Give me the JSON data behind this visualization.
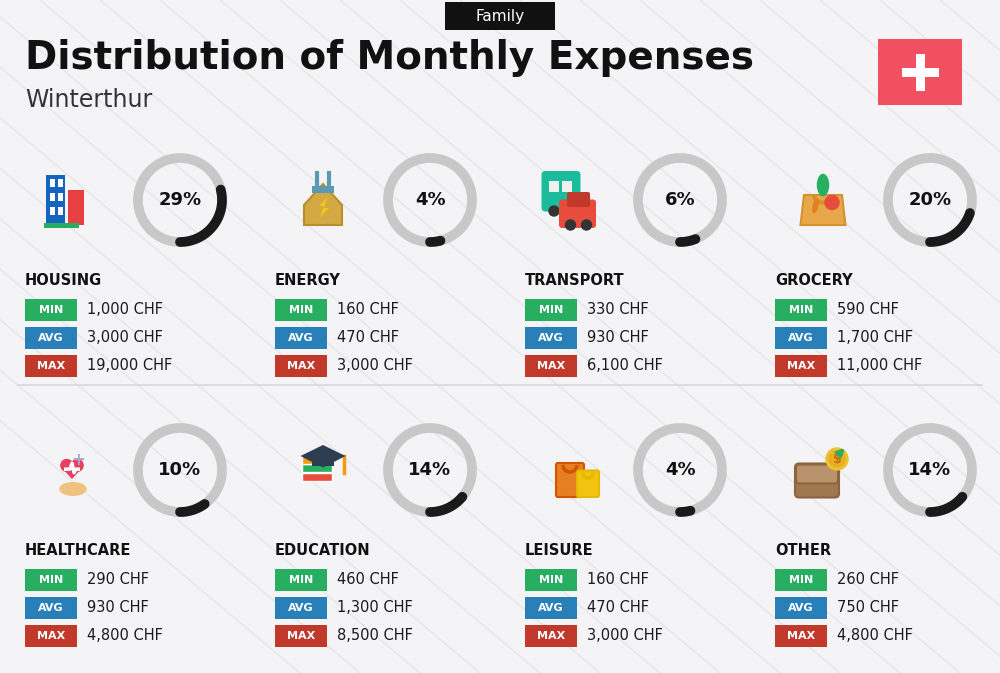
{
  "title": "Distribution of Monthly Expenses",
  "subtitle": "Winterthur",
  "header_label": "Family",
  "bg_color": "#f4f4f6",
  "categories": [
    {
      "name": "HOUSING",
      "percent": 29,
      "min_val": "1,000 CHF",
      "avg_val": "3,000 CHF",
      "max_val": "19,000 CHF",
      "row": 0,
      "col": 0
    },
    {
      "name": "ENERGY",
      "percent": 4,
      "min_val": "160 CHF",
      "avg_val": "470 CHF",
      "max_val": "3,000 CHF",
      "row": 0,
      "col": 1
    },
    {
      "name": "TRANSPORT",
      "percent": 6,
      "min_val": "330 CHF",
      "avg_val": "930 CHF",
      "max_val": "6,100 CHF",
      "row": 0,
      "col": 2
    },
    {
      "name": "GROCERY",
      "percent": 20,
      "min_val": "590 CHF",
      "avg_val": "1,700 CHF",
      "max_val": "11,000 CHF",
      "row": 0,
      "col": 3
    },
    {
      "name": "HEALTHCARE",
      "percent": 10,
      "min_val": "290 CHF",
      "avg_val": "930 CHF",
      "max_val": "4,800 CHF",
      "row": 1,
      "col": 0
    },
    {
      "name": "EDUCATION",
      "percent": 14,
      "min_val": "460 CHF",
      "avg_val": "1,300 CHF",
      "max_val": "8,500 CHF",
      "row": 1,
      "col": 1
    },
    {
      "name": "LEISURE",
      "percent": 4,
      "min_val": "160 CHF",
      "avg_val": "470 CHF",
      "max_val": "3,000 CHF",
      "row": 1,
      "col": 2
    },
    {
      "name": "OTHER",
      "percent": 14,
      "min_val": "260 CHF",
      "avg_val": "750 CHF",
      "max_val": "4,800 CHF",
      "row": 1,
      "col": 3
    }
  ],
  "color_min": "#27ae60",
  "color_avg": "#2980b9",
  "color_max": "#c0392b",
  "color_circle_filled": "#1a1a1a",
  "color_circle_empty": "#c8c8c8",
  "swiss_cross_bg": "#f05060",
  "diag_line_color": "#e8e8ea",
  "separator_color": "#d8d8d8"
}
